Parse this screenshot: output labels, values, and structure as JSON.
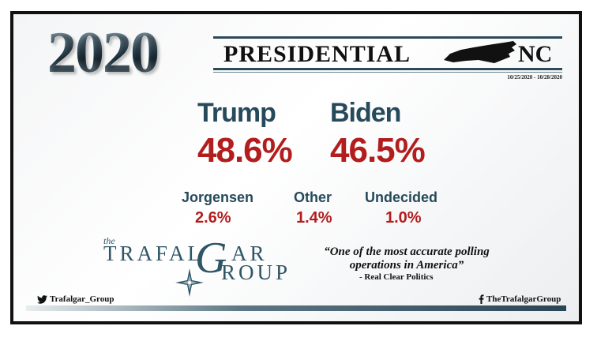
{
  "header": {
    "year": "2020",
    "title": "PRESIDENTIAL",
    "state": "NC",
    "dates": "10/25/2020 - 10/28/2020"
  },
  "main_candidates": [
    {
      "name": "Trump",
      "percent": "48.6%"
    },
    {
      "name": "Biden",
      "percent": "46.5%"
    }
  ],
  "other_candidates": [
    {
      "name": "Jorgensen",
      "percent": "2.6%"
    },
    {
      "name": "Other",
      "percent": "1.4%"
    },
    {
      "name": "Undecided",
      "percent": "1.0%"
    }
  ],
  "logo": {
    "the": "the",
    "trafal": "TRAFAL",
    "g": "G",
    "ar": "AR",
    "group": "ROUP"
  },
  "quote": {
    "text": "“One of the most accurate polling operations in America”",
    "source": "- Real Clear Politics"
  },
  "footer": {
    "twitter_handle": "Trafalgar_Group",
    "facebook_handle": "TheTrafalgarGroup"
  },
  "colors": {
    "name_teal": "#264a5a",
    "percent_red": "#b21d1d",
    "frame": "#111111"
  }
}
